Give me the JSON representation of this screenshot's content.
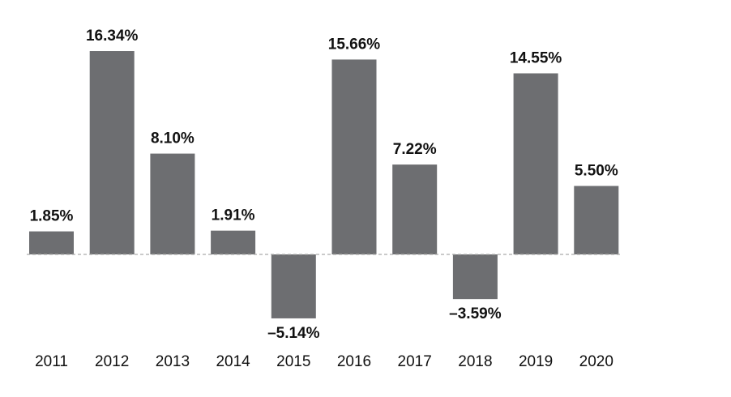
{
  "chart_data": {
    "type": "bar",
    "categories": [
      "2011",
      "2012",
      "2013",
      "2014",
      "2015",
      "2016",
      "2017",
      "2018",
      "2019",
      "2020"
    ],
    "values": [
      1.85,
      16.34,
      8.1,
      1.91,
      -5.14,
      15.66,
      7.22,
      -3.59,
      14.55,
      5.5
    ],
    "value_labels": [
      "1.85%",
      "16.34%",
      "8.10%",
      "1.91%",
      "–5.14%",
      "15.66%",
      "7.22%",
      "–3.59%",
      "14.55%",
      "5.50%"
    ],
    "color": "#6d6e71"
  }
}
